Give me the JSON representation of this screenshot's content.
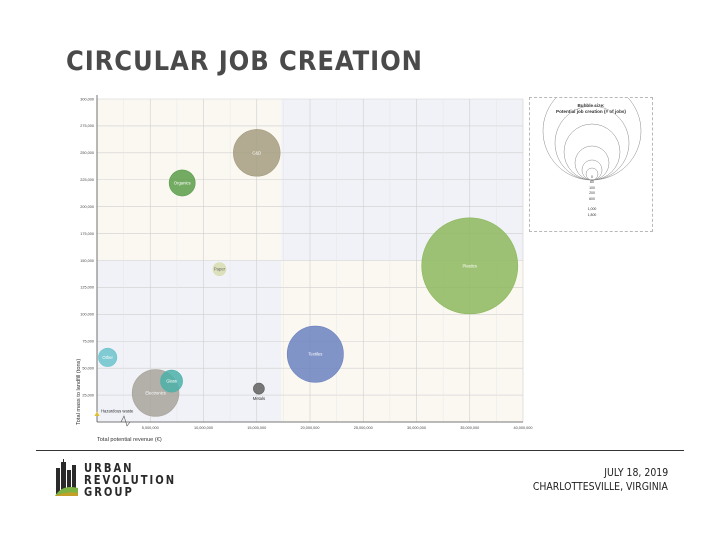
{
  "page": {
    "title": "CIRCULAR JOB CREATION"
  },
  "chart_data": {
    "type": "scatter",
    "subtype": "bubble",
    "xlabel": "Total potential revenue (€)",
    "ylabel": "Total mass to landfill (tons)",
    "xlim": [
      0,
      40000000
    ],
    "ylim": [
      0,
      300000
    ],
    "x_ticks": [
      0,
      5000000,
      10000000,
      15000000,
      20000000,
      25000000,
      30000000,
      35000000,
      40000000
    ],
    "x_tick_labels": [
      "",
      "5,000,000",
      "10,000,000",
      "15,000,000",
      "20,000,000",
      "25,000,000",
      "30,000,000",
      "35,000,000",
      "40,000,000"
    ],
    "y_ticks": [
      0,
      25000,
      50000,
      75000,
      100000,
      125000,
      150000,
      175000,
      200000,
      225000,
      250000,
      275000,
      300000
    ],
    "y_tick_labels": [
      "",
      "25,000",
      "50,000",
      "75,000",
      "100,000",
      "125,000",
      "150,000",
      "175,000",
      "200,000",
      "225,000",
      "250,000",
      "275,000",
      "300,000"
    ],
    "grid": true,
    "bubble_size_legend": {
      "title_line1": "Bubble size:",
      "title_line2": "Potential job creation (# of jobs)",
      "values": [
        "0",
        "60",
        "100",
        "200",
        "600",
        "1,000",
        "1,800"
      ]
    },
    "points": [
      {
        "name": "C&D",
        "x": 15000000,
        "y": 250000,
        "size": 900,
        "color": "#a59d80",
        "label_inside": true
      },
      {
        "name": "Organics",
        "x": 8000000,
        "y": 222000,
        "size": 280,
        "color": "#5a9e4a",
        "label_inside": true
      },
      {
        "name": "Paper",
        "x": 11500000,
        "y": 142000,
        "size": 70,
        "color": "#d9deb0",
        "label_inside": true
      },
      {
        "name": "Plastics",
        "x": 35000000,
        "y": 145000,
        "size": 3800,
        "color": "#8db85e",
        "label_inside": true
      },
      {
        "name": "Textiles",
        "x": 20500000,
        "y": 63000,
        "size": 1300,
        "color": "#6b82c0",
        "label_inside": true
      },
      {
        "name": "Metals",
        "x": 15200000,
        "y": 31000,
        "size": 50,
        "color": "#606060",
        "label_inside": false
      },
      {
        "name": "Other",
        "x": 1000000,
        "y": 60000,
        "size": 140,
        "color": "#6cc4cc",
        "label_inside": true
      },
      {
        "name": "Glass",
        "x": 7000000,
        "y": 38000,
        "size": 200,
        "color": "#4bb0a8",
        "label_inside": true
      },
      {
        "name": "Electronics",
        "x": 5500000,
        "y": 27000,
        "size": 900,
        "color": "#a8a39b",
        "label_inside": true
      },
      {
        "name": "Hazardous waste",
        "x": 0,
        "y": 7000,
        "size": 5,
        "color": "#e0c030",
        "label_inside": false
      }
    ]
  },
  "footer": {
    "brand_line1": "URBAN",
    "brand_line2": "REVOLUTION",
    "brand_line3": "GROUP",
    "date": "JULY 18, 2019",
    "location": "CHARLOTTESVILLE, VIRGINIA"
  },
  "colors": {
    "title": "#4a4a4a",
    "quadrant_beige": "#fbf8f2",
    "quadrant_blue": "#f0f2f7",
    "grid": "#cfcfcf",
    "logo_green": "#7cb342",
    "logo_dark": "#2a2a2a"
  }
}
